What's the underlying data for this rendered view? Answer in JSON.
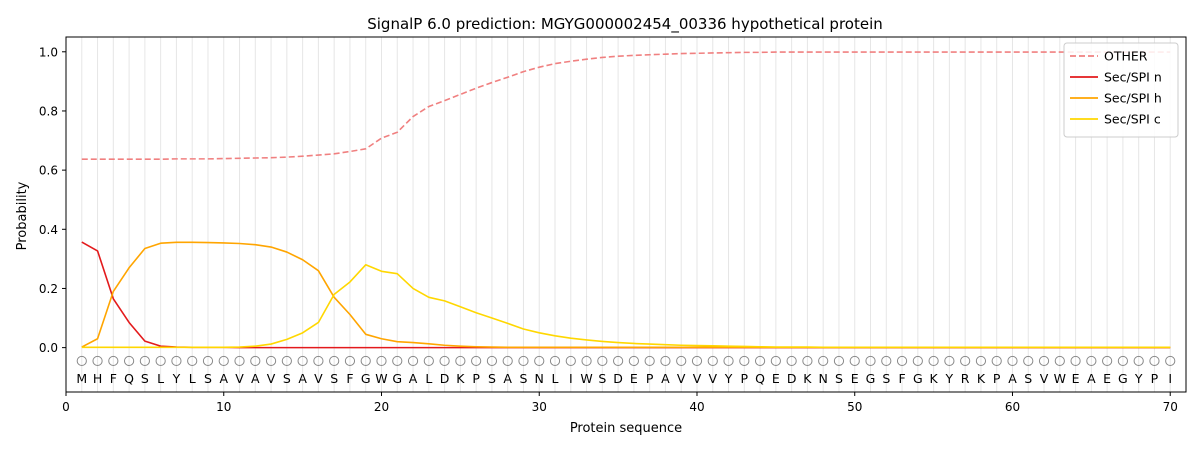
{
  "chart_data": {
    "type": "line",
    "title": "SignalP 6.0 prediction: MGYG000002454_00336 hypothetical protein",
    "xlabel": "Protein sequence",
    "ylabel": "Probability",
    "xlim": [
      0,
      71
    ],
    "ylim": [
      -0.15,
      1.05
    ],
    "xticks": [
      0,
      10,
      20,
      30,
      40,
      50,
      60,
      70
    ],
    "yticks": [
      0.0,
      0.2,
      0.4,
      0.6,
      0.8,
      1.0
    ],
    "legend_position": "top-right",
    "sequence": [
      "M",
      "H",
      "F",
      "Q",
      "S",
      "L",
      "Y",
      "L",
      "S",
      "A",
      "V",
      "A",
      "V",
      "S",
      "A",
      "V",
      "S",
      "F",
      "G",
      "W",
      "G",
      "A",
      "L",
      "D",
      "K",
      "P",
      "S",
      "A",
      "S",
      "N",
      "L",
      "I",
      "W",
      "S",
      "D",
      "E",
      "P",
      "A",
      "V",
      "V",
      "V",
      "Y",
      "P",
      "Q",
      "E",
      "D",
      "K",
      "N",
      "S",
      "E",
      "G",
      "S",
      "F",
      "G",
      "K",
      "Y",
      "R",
      "K",
      "P",
      "A",
      "S",
      "V",
      "W",
      "E",
      "A",
      "E",
      "G",
      "Y",
      "P",
      "I"
    ],
    "region_markers": "O",
    "series": [
      {
        "name": "OTHER",
        "color": "#f08080",
        "dashed": true,
        "values": [
          0.637,
          0.637,
          0.637,
          0.637,
          0.637,
          0.637,
          0.638,
          0.638,
          0.638,
          0.639,
          0.64,
          0.641,
          0.642,
          0.644,
          0.647,
          0.651,
          0.655,
          0.663,
          0.672,
          0.708,
          0.728,
          0.781,
          0.815,
          0.835,
          0.856,
          0.877,
          0.896,
          0.914,
          0.933,
          0.948,
          0.96,
          0.968,
          0.975,
          0.981,
          0.985,
          0.988,
          0.99,
          0.992,
          0.994,
          0.995,
          0.996,
          0.997,
          0.998,
          0.998,
          0.999,
          0.999,
          0.999,
          0.999,
          0.999,
          0.999,
          0.999,
          0.999,
          0.999,
          0.999,
          0.999,
          0.999,
          0.999,
          0.999,
          0.999,
          0.999,
          0.999,
          0.999,
          0.999,
          0.999,
          0.999,
          0.999,
          0.999,
          0.999,
          0.999,
          0.999
        ]
      },
      {
        "name": "Sec/SPI n",
        "color": "#e31a1c",
        "dashed": false,
        "values": [
          0.357,
          0.327,
          0.165,
          0.085,
          0.022,
          0.005,
          0.002,
          0.001,
          0.001,
          0.001,
          0,
          0,
          0,
          0,
          0,
          0,
          0,
          0,
          0,
          0,
          0,
          0,
          0,
          0,
          0,
          0,
          0,
          0,
          0,
          0,
          0,
          0,
          0,
          0,
          0,
          0,
          0,
          0,
          0,
          0,
          0,
          0,
          0,
          0,
          0,
          0,
          0,
          0,
          0,
          0,
          0,
          0,
          0,
          0,
          0,
          0,
          0,
          0,
          0,
          0,
          0,
          0,
          0,
          0,
          0,
          0,
          0,
          0,
          0,
          0
        ]
      },
      {
        "name": "Sec/SPI h",
        "color": "#ffa500",
        "dashed": false,
        "values": [
          0.002,
          0.03,
          0.19,
          0.27,
          0.335,
          0.353,
          0.356,
          0.356,
          0.355,
          0.354,
          0.352,
          0.348,
          0.34,
          0.323,
          0.297,
          0.26,
          0.17,
          0.112,
          0.045,
          0.03,
          0.02,
          0.017,
          0.013,
          0.008,
          0.005,
          0.003,
          0.002,
          0.001,
          0.001,
          0.001,
          0.001,
          0.001,
          0.001,
          0.001,
          0.001,
          0.001,
          0.001,
          0.001,
          0.001,
          0.001,
          0.001,
          0.001,
          0.001,
          0.001,
          0.001,
          0.001,
          0.001,
          0.001,
          0.001,
          0.001,
          0.001,
          0.001,
          0.001,
          0.001,
          0.001,
          0.001,
          0.001,
          0.001,
          0.001,
          0.001,
          0.001,
          0.001,
          0.001,
          0.001,
          0.001,
          0.001,
          0.001,
          0.001,
          0.001,
          0.001
        ]
      },
      {
        "name": "Sec/SPI c",
        "color": "#ffd700",
        "dashed": false,
        "values": [
          0.001,
          0.001,
          0.001,
          0.001,
          0.001,
          0.001,
          0.001,
          0.001,
          0.001,
          0.001,
          0.002,
          0.005,
          0.012,
          0.028,
          0.05,
          0.085,
          0.18,
          0.222,
          0.28,
          0.258,
          0.25,
          0.2,
          0.17,
          0.158,
          0.138,
          0.118,
          0.1,
          0.082,
          0.063,
          0.05,
          0.04,
          0.032,
          0.026,
          0.021,
          0.017,
          0.014,
          0.012,
          0.01,
          0.008,
          0.007,
          0.006,
          0.005,
          0.004,
          0.003,
          0.002,
          0.002,
          0.002,
          0.001,
          0.001,
          0.001,
          0.001,
          0.001,
          0.001,
          0.001,
          0.001,
          0.001,
          0.001,
          0.001,
          0.001,
          0.001,
          0.001,
          0.001,
          0.001,
          0.001,
          0.001,
          0.001,
          0.001,
          0.001,
          0.001,
          0.001
        ]
      }
    ]
  }
}
